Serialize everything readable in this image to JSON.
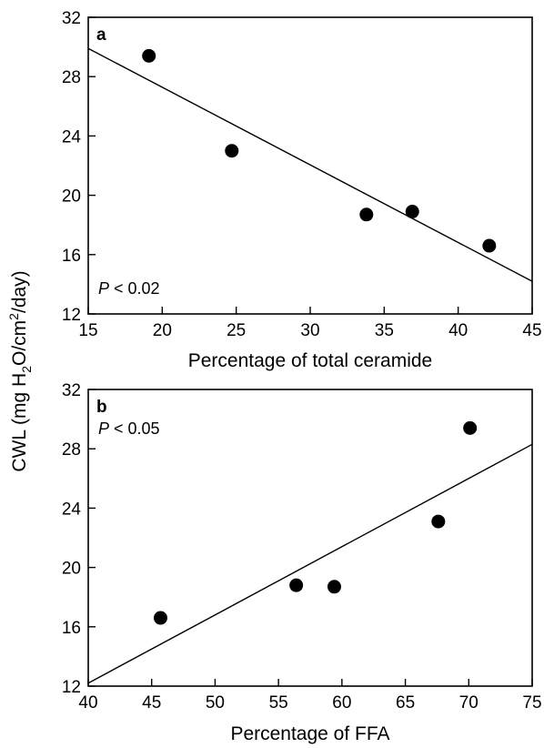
{
  "figure": {
    "shared_ylabel_parts": {
      "prefix": "CWL (mg H",
      "sub1": "2",
      "mid": "O/cm",
      "sup": "2",
      "suffix": "/day)"
    }
  },
  "chart_data": [
    {
      "type": "scatter",
      "panel_label": "a",
      "annotation_italic": "P",
      "annotation_rest": " < 0.02",
      "xlabel": "Percentage of total ceramide",
      "ylabel": "CWL (mg H2O/cm2/day)",
      "xlim": [
        15,
        45
      ],
      "ylim": [
        12,
        32
      ],
      "xticks": [
        "15",
        "20",
        "25",
        "30",
        "35",
        "40",
        "45"
      ],
      "yticks": [
        "12",
        "16",
        "20",
        "24",
        "28",
        "32"
      ],
      "grid": false,
      "x": [
        19.1,
        24.7,
        33.8,
        36.9,
        42.1
      ],
      "y": [
        29.4,
        23.0,
        18.7,
        18.9,
        16.6
      ],
      "fit_line": {
        "x": [
          15,
          45
        ],
        "y": [
          29.9,
          14.2
        ]
      }
    },
    {
      "type": "scatter",
      "panel_label": "b",
      "annotation_italic": "P",
      "annotation_rest": " < 0.05",
      "xlabel": "Percentage of FFA",
      "ylabel": "CWL (mg H2O/cm2/day)",
      "xlim": [
        40,
        75
      ],
      "ylim": [
        12,
        32
      ],
      "xticks": [
        "40",
        "45",
        "50",
        "55",
        "60",
        "65",
        "70",
        "75"
      ],
      "yticks": [
        "12",
        "16",
        "20",
        "24",
        "28",
        "32"
      ],
      "grid": false,
      "x": [
        45.7,
        56.4,
        59.4,
        67.6,
        70.1
      ],
      "y": [
        16.6,
        18.8,
        18.7,
        23.1,
        29.4
      ],
      "fit_line": {
        "x": [
          40,
          75
        ],
        "y": [
          12.2,
          28.3
        ]
      }
    }
  ]
}
